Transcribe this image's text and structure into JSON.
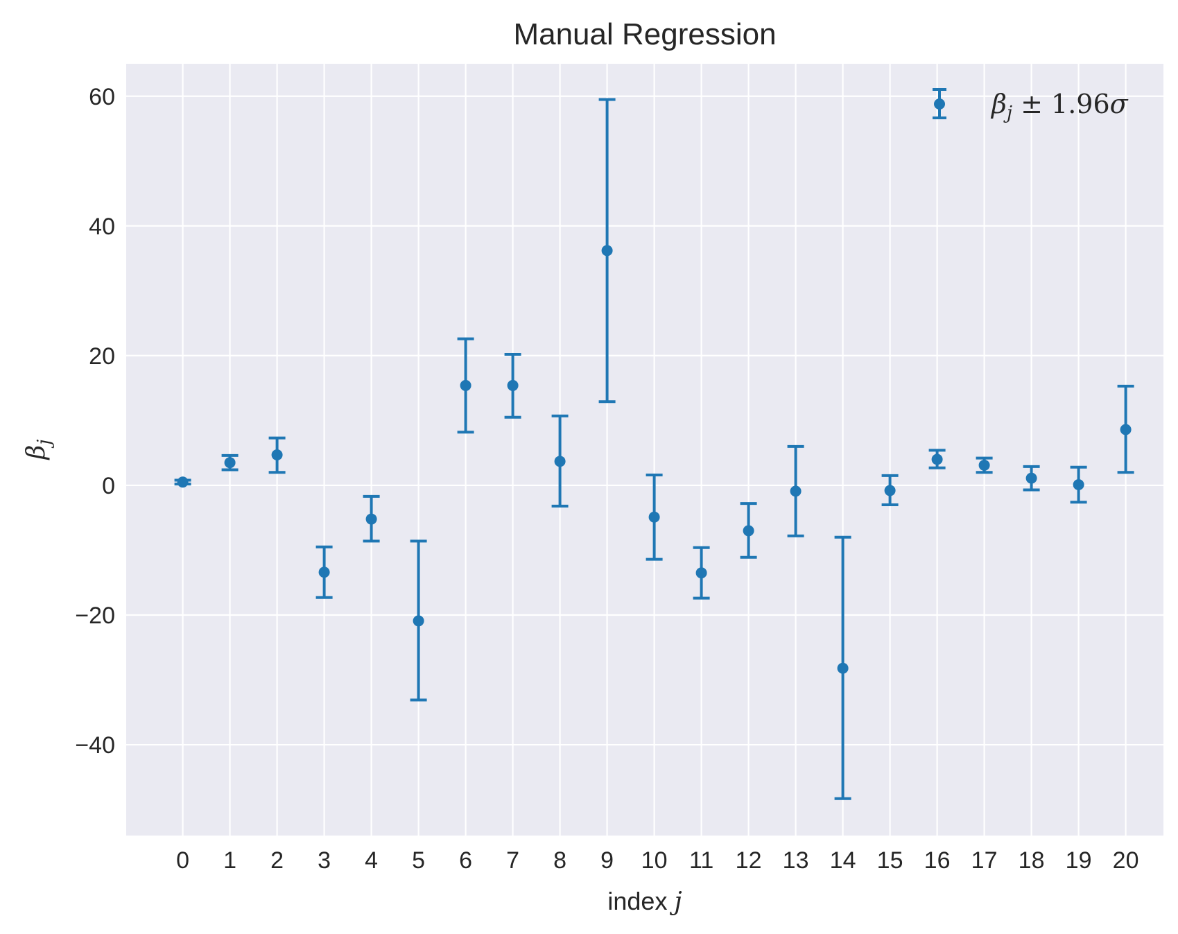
{
  "chart_data": {
    "type": "scatter",
    "title": "Manual Regression",
    "xlabel": "index j",
    "ylabel": "β_j",
    "xlim": [
      -1.2,
      20.8
    ],
    "ylim": [
      -54,
      65
    ],
    "xticks": [
      0,
      1,
      2,
      3,
      4,
      5,
      6,
      7,
      8,
      9,
      10,
      11,
      12,
      13,
      14,
      15,
      16,
      17,
      18,
      19,
      20
    ],
    "yticks": [
      -40,
      -20,
      0,
      20,
      40,
      60
    ],
    "ytick_labels": [
      "−40",
      "−20",
      "0",
      "20",
      "40",
      "60"
    ],
    "grid": true,
    "legend": {
      "position": "top-right",
      "entries": [
        "β_j ± 1.96σ"
      ]
    },
    "series": [
      {
        "name": "β_j ± 1.96σ",
        "color": "#1f77b4",
        "x": [
          0,
          1,
          2,
          3,
          4,
          5,
          6,
          7,
          8,
          9,
          10,
          11,
          12,
          13,
          14,
          15,
          16,
          17,
          18,
          19,
          20
        ],
        "y": [
          0.5,
          3.5,
          4.7,
          -13.4,
          -5.2,
          -20.9,
          15.4,
          15.4,
          3.7,
          36.2,
          -4.9,
          -13.5,
          -7.0,
          -0.9,
          -28.2,
          -0.8,
          4.0,
          3.1,
          1.1,
          0.1,
          8.6
        ],
        "lower": [
          0.2,
          2.4,
          2.0,
          -17.3,
          -8.6,
          -33.1,
          8.2,
          10.5,
          -3.2,
          12.9,
          -11.4,
          -17.4,
          -11.1,
          -7.8,
          -48.3,
          -3.0,
          2.7,
          2.0,
          -0.7,
          -2.6,
          2.0
        ],
        "upper": [
          0.8,
          4.6,
          7.3,
          -9.5,
          -1.7,
          -8.6,
          22.6,
          20.2,
          10.7,
          59.5,
          1.6,
          -9.6,
          -2.8,
          6.0,
          -8.0,
          1.5,
          5.4,
          4.2,
          2.9,
          2.8,
          15.3
        ]
      }
    ]
  }
}
